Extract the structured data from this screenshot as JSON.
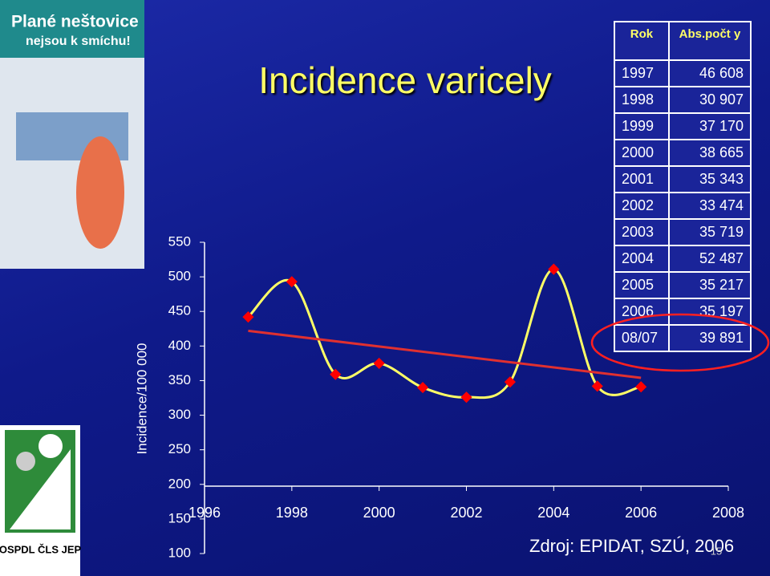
{
  "poster": {
    "title": "Plané neštovice",
    "subtitle": "nejsou k smíchu!"
  },
  "logo_text": "OSPDL ČLS JEP",
  "chart_data": {
    "type": "line",
    "title": "Incidence varicely",
    "y_label": "Incidence/100 000",
    "xlim": [
      1996,
      2008
    ],
    "xticks": [
      1996,
      1998,
      2000,
      2002,
      2004,
      2006,
      2008
    ],
    "ylim": [
      100,
      550
    ],
    "yticks": [
      100,
      150,
      200,
      250,
      300,
      350,
      400,
      450,
      500,
      550
    ],
    "series": [
      {
        "color": "#ffff66",
        "marker_color": "#ff0000",
        "smooth": true,
        "x": [
          1997,
          1998,
          1999,
          2000,
          2001,
          2002,
          2003,
          2004,
          2005,
          2006
        ],
        "values": [
          442,
          493,
          359,
          375,
          340,
          326,
          348,
          511,
          342,
          341
        ]
      },
      {
        "color": "#e03030",
        "x": [
          1997,
          2006
        ],
        "values": [
          422,
          354
        ]
      }
    ]
  },
  "table": {
    "header": [
      "Rok",
      "Abs.počt y"
    ],
    "rows": [
      [
        "1997",
        "46 608"
      ],
      [
        "1998",
        "30 907"
      ],
      [
        "1999",
        "37 170"
      ],
      [
        "2000",
        "38 665"
      ],
      [
        "2001",
        "35 343"
      ],
      [
        "2002",
        "33 474"
      ],
      [
        "2003",
        "35 719"
      ],
      [
        "2004",
        "52 487"
      ],
      [
        "2005",
        "35 217"
      ],
      [
        "2006",
        "35 197"
      ],
      [
        "08/07",
        "39 891"
      ]
    ]
  },
  "source": "Zdroj: EPIDAT, SZÚ, 2006",
  "page_number": "15"
}
